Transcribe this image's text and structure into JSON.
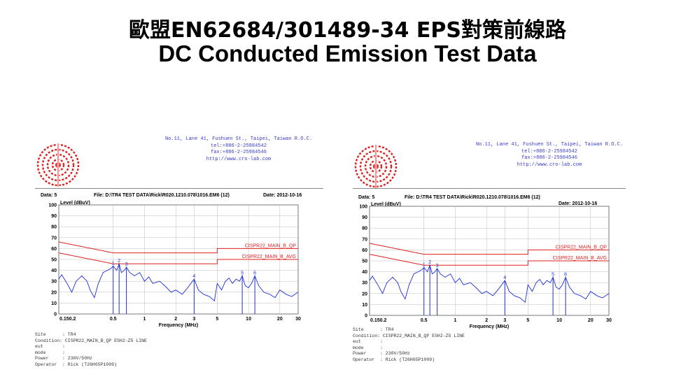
{
  "slide": {
    "title_line1": "歐盟EN62684/301489-34 EPS對策前線路",
    "title_line2": "DC Conducted Emission Test Data"
  },
  "reports": [
    {
      "address": [
        "No.11, Lane 41, Fushuen St., Taipei, Taiwan R.O.C.",
        "tel:+886-2-25984542",
        "fax:+886-2-25984546",
        "http://www.cro-lab.com"
      ],
      "data_label": "Data: 5",
      "file_label": "File: D:\\TR4 TEST DATA\\Rick\\R020.1210.078\\1016.EM6 (12)",
      "date_label": "Date: 2012-10-16",
      "info": [
        "Site      : TR4",
        "Condition: CISPR22_MAIN_B_QP ESH2-Z5 LINE",
        "eut       :",
        "mode      :",
        "Power     : 230V/50Hz",
        "Operator  : Rick (T26H65P1009)"
      ]
    },
    {
      "address": [
        "No.11, Lane 41, Fushuen St., Taipei, Taiwan R.O.C.",
        "tel:+886-2-25984542",
        "fax:+886-2-25984546",
        "http://www.cro-lab.com"
      ],
      "data_label": "Data: 5",
      "file_label": "File: D:\\TR4 TEST DATA\\Rick\\R020.1210.078\\1016.EM6 (12)",
      "date_label": "Date: 2012-10-16",
      "info": [
        "Site      : TR4",
        "Condition: CISPR22_MAIN_B_QP ESH2-Z5 LINE",
        "eut       :",
        "mode      :",
        "Power     : 230V/50Hz",
        "Operator  : Rick (T26H65P1009)"
      ]
    }
  ],
  "chart_data": [
    {
      "type": "line",
      "xlabel": "Frequency (MHz)",
      "ylabel": "Level (dBuV)",
      "xscale": "log",
      "xlim": [
        0.15,
        30
      ],
      "ylim": [
        0,
        100
      ],
      "x_ticks": [
        "0.150.2",
        "0.5",
        "1",
        "2",
        "3",
        "5",
        "10",
        "20",
        "30"
      ],
      "y_ticks": [
        "0",
        "10",
        "20",
        "30",
        "40",
        "50",
        "60",
        "70",
        "80",
        "90",
        "100"
      ],
      "limit_lines": [
        {
          "name": "CISPR22_MAIN_B_QP",
          "points": [
            [
              0.15,
              66
            ],
            [
              0.5,
              56
            ],
            [
              5,
              56
            ],
            [
              5,
              60
            ],
            [
              30,
              60
            ]
          ]
        },
        {
          "name": "CISPR22_MAIN_B_AVG",
          "points": [
            [
              0.15,
              56
            ],
            [
              0.5,
              46
            ],
            [
              5,
              46
            ],
            [
              5,
              50
            ],
            [
              30,
              50
            ]
          ]
        }
      ],
      "markers": [
        {
          "label": "1",
          "x": 0.5,
          "y": 44
        },
        {
          "label": "2",
          "x": 0.57,
          "y": 46
        },
        {
          "label": "3",
          "x": 0.67,
          "y": 43
        },
        {
          "label": "4",
          "x": 3.0,
          "y": 32
        },
        {
          "label": "5",
          "x": 8.7,
          "y": 35
        },
        {
          "label": "6",
          "x": 11.5,
          "y": 35
        }
      ],
      "series_points": [
        [
          0.15,
          32
        ],
        [
          0.16,
          36
        ],
        [
          0.18,
          28
        ],
        [
          0.2,
          20
        ],
        [
          0.22,
          30
        ],
        [
          0.25,
          35
        ],
        [
          0.28,
          30
        ],
        [
          0.3,
          22
        ],
        [
          0.33,
          15
        ],
        [
          0.36,
          28
        ],
        [
          0.4,
          38
        ],
        [
          0.44,
          40
        ],
        [
          0.48,
          42
        ],
        [
          0.5,
          44
        ],
        [
          0.54,
          40
        ],
        [
          0.57,
          46
        ],
        [
          0.6,
          38
        ],
        [
          0.64,
          40
        ],
        [
          0.67,
          43
        ],
        [
          0.72,
          38
        ],
        [
          0.8,
          35
        ],
        [
          0.9,
          38
        ],
        [
          1.0,
          30
        ],
        [
          1.1,
          34
        ],
        [
          1.2,
          28
        ],
        [
          1.4,
          30
        ],
        [
          1.6,
          25
        ],
        [
          1.8,
          20
        ],
        [
          2.0,
          22
        ],
        [
          2.3,
          18
        ],
        [
          2.6,
          24
        ],
        [
          3.0,
          32
        ],
        [
          3.3,
          22
        ],
        [
          3.7,
          18
        ],
        [
          4.2,
          16
        ],
        [
          4.7,
          12
        ],
        [
          5.0,
          28
        ],
        [
          5.5,
          22
        ],
        [
          6.0,
          30
        ],
        [
          6.5,
          33
        ],
        [
          7.0,
          28
        ],
        [
          7.6,
          32
        ],
        [
          8.2,
          30
        ],
        [
          8.7,
          35
        ],
        [
          9.3,
          26
        ],
        [
          10.0,
          24
        ],
        [
          10.7,
          28
        ],
        [
          11.5,
          35
        ],
        [
          12.5,
          26
        ],
        [
          14,
          20
        ],
        [
          16,
          18
        ],
        [
          18,
          15
        ],
        [
          20,
          22
        ],
        [
          23,
          18
        ],
        [
          26,
          16
        ],
        [
          30,
          20
        ]
      ]
    },
    {
      "type": "line",
      "xlabel": "Frequency (MHz)",
      "ylabel": "Level (dBuV)",
      "xscale": "log",
      "xlim": [
        0.15,
        30
      ],
      "ylim": [
        0,
        100
      ],
      "x_ticks": [
        "0.150.2",
        "0.5",
        "1",
        "2",
        "3",
        "5",
        "10",
        "20",
        "30"
      ],
      "y_ticks": [
        "0",
        "10",
        "20",
        "30",
        "40",
        "50",
        "60",
        "70",
        "80",
        "90",
        "100"
      ],
      "limit_lines": [
        {
          "name": "CISPR22_MAIN_B_QP",
          "points": [
            [
              0.15,
              66
            ],
            [
              0.5,
              56
            ],
            [
              5,
              56
            ],
            [
              5,
              60
            ],
            [
              30,
              60
            ]
          ]
        },
        {
          "name": "CISPR22_MAIN_B_AVG",
          "points": [
            [
              0.15,
              56
            ],
            [
              0.5,
              46
            ],
            [
              5,
              46
            ],
            [
              5,
              50
            ],
            [
              30,
              50
            ]
          ]
        }
      ],
      "markers": [
        {
          "label": "1",
          "x": 0.5,
          "y": 44
        },
        {
          "label": "2",
          "x": 0.57,
          "y": 46
        },
        {
          "label": "3",
          "x": 0.67,
          "y": 43
        },
        {
          "label": "4",
          "x": 3.0,
          "y": 32
        },
        {
          "label": "5",
          "x": 8.7,
          "y": 35
        },
        {
          "label": "6",
          "x": 11.5,
          "y": 35
        }
      ],
      "series_points": [
        [
          0.15,
          32
        ],
        [
          0.16,
          36
        ],
        [
          0.18,
          28
        ],
        [
          0.2,
          20
        ],
        [
          0.22,
          30
        ],
        [
          0.25,
          35
        ],
        [
          0.28,
          30
        ],
        [
          0.3,
          22
        ],
        [
          0.33,
          15
        ],
        [
          0.36,
          28
        ],
        [
          0.4,
          38
        ],
        [
          0.44,
          40
        ],
        [
          0.48,
          42
        ],
        [
          0.5,
          44
        ],
        [
          0.54,
          40
        ],
        [
          0.57,
          46
        ],
        [
          0.6,
          38
        ],
        [
          0.64,
          40
        ],
        [
          0.67,
          43
        ],
        [
          0.72,
          38
        ],
        [
          0.8,
          35
        ],
        [
          0.9,
          38
        ],
        [
          1.0,
          30
        ],
        [
          1.1,
          34
        ],
        [
          1.2,
          28
        ],
        [
          1.4,
          30
        ],
        [
          1.6,
          25
        ],
        [
          1.8,
          20
        ],
        [
          2.0,
          22
        ],
        [
          2.3,
          18
        ],
        [
          2.6,
          24
        ],
        [
          3.0,
          32
        ],
        [
          3.3,
          22
        ],
        [
          3.7,
          18
        ],
        [
          4.2,
          16
        ],
        [
          4.7,
          12
        ],
        [
          5.0,
          28
        ],
        [
          5.5,
          22
        ],
        [
          6.0,
          30
        ],
        [
          6.5,
          33
        ],
        [
          7.0,
          28
        ],
        [
          7.6,
          32
        ],
        [
          8.2,
          30
        ],
        [
          8.7,
          35
        ],
        [
          9.3,
          26
        ],
        [
          10.0,
          24
        ],
        [
          10.7,
          28
        ],
        [
          11.5,
          35
        ],
        [
          12.5,
          26
        ],
        [
          14,
          20
        ],
        [
          16,
          18
        ],
        [
          18,
          15
        ],
        [
          20,
          22
        ],
        [
          23,
          18
        ],
        [
          26,
          16
        ],
        [
          30,
          20
        ]
      ]
    }
  ]
}
